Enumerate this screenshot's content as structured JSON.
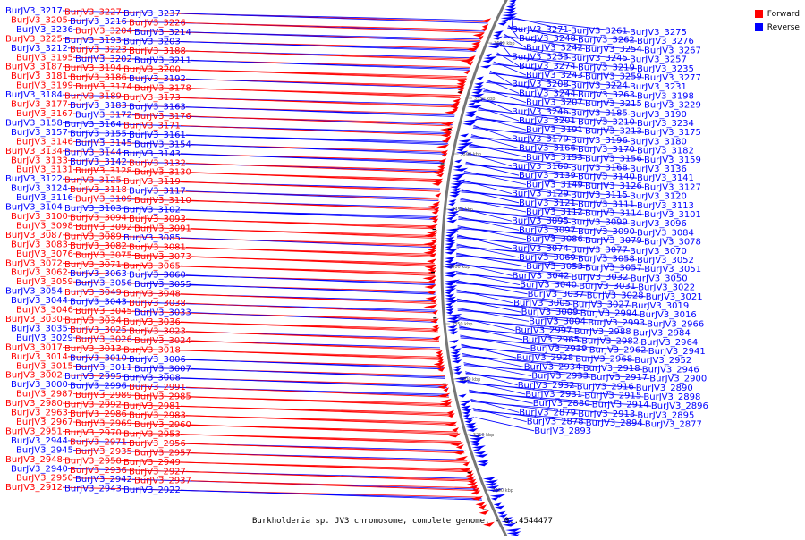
{
  "legend": {
    "forward_label": "Forward",
    "reverse_label": "Reverse",
    "forward_color": "#ff0000",
    "reverse_color": "#0000ff"
  },
  "caption": "Burkholderia sp. JV3 chromosome, complete genome. - 0..4544477",
  "axis_ticks": [
    "3600 kbp",
    "3550 kbp",
    "3500 kbp",
    "3450 kbp",
    "3400 kbp",
    "3350 kbp",
    "3300 kbp",
    "3250 kbp",
    "3200 kbp"
  ],
  "left_labels": [
    {
      "t": "BurJV3_3217",
      "s": "r"
    },
    {
      "t": "BurJV3_3227",
      "s": "f"
    },
    {
      "t": "BurJV3_3237",
      "s": "r"
    },
    {
      "t": "BurJV3_3205",
      "s": "f"
    },
    {
      "t": "BurJV3_3216",
      "s": "r"
    },
    {
      "t": "BurJV3_3226",
      "s": "f"
    },
    {
      "t": "BurJV3_3236",
      "s": "r"
    },
    {
      "t": "BurJV3_3204",
      "s": "f"
    },
    {
      "t": "BurJV3_3214",
      "s": "r"
    },
    {
      "t": "BurJV3_3225",
      "s": "f"
    },
    {
      "t": "BurJV3_3193",
      "s": "r"
    },
    {
      "t": "BurJV3_3203",
      "s": "r"
    },
    {
      "t": "BurJV3_3212",
      "s": "r"
    },
    {
      "t": "BurJV3_3223",
      "s": "f"
    },
    {
      "t": "BurJV3_3188",
      "s": "f"
    },
    {
      "t": "BurJV3_3195",
      "s": "f"
    },
    {
      "t": "BurJV3_3202",
      "s": "r"
    },
    {
      "t": "BurJV3_3211",
      "s": "r"
    },
    {
      "t": "BurJV3_3187",
      "s": "f"
    },
    {
      "t": "BurJV3_3194",
      "s": "f"
    },
    {
      "t": "BurJV3_3200",
      "s": "f"
    },
    {
      "t": "BurJV3_3181",
      "s": "f"
    },
    {
      "t": "BurJV3_3186",
      "s": "f"
    },
    {
      "t": "BurJV3_3192",
      "s": "r"
    },
    {
      "t": "BurJV3_3199",
      "s": "f"
    },
    {
      "t": "BurJV3_3174",
      "s": "f"
    },
    {
      "t": "BurJV3_3178",
      "s": "f"
    },
    {
      "t": "BurJV3_3184",
      "s": "r"
    },
    {
      "t": "BurJV3_3189",
      "s": "f"
    },
    {
      "t": "BurJV3_3173",
      "s": "f"
    },
    {
      "t": "BurJV3_3177",
      "s": "f"
    },
    {
      "t": "BurJV3_3183",
      "s": "r"
    },
    {
      "t": "BurJV3_3163",
      "s": "r"
    },
    {
      "t": "BurJV3_3167",
      "s": "f"
    },
    {
      "t": "BurJV3_3172",
      "s": "r"
    },
    {
      "t": "BurJV3_3176",
      "s": "f"
    },
    {
      "t": "BurJV3_3158",
      "s": "r"
    },
    {
      "t": "BurJV3_3164",
      "s": "r"
    },
    {
      "t": "BurJV3_3171",
      "s": "f"
    },
    {
      "t": "BurJV3_3157",
      "s": "r"
    },
    {
      "t": "BurJV3_3155",
      "s": "r"
    },
    {
      "t": "BurJV3_3161",
      "s": "r"
    },
    {
      "t": "BurJV3_3146",
      "s": "f"
    },
    {
      "t": "BurJV3_3145",
      "s": "r"
    },
    {
      "t": "BurJV3_3154",
      "s": "r"
    },
    {
      "t": "BurJV3_3134",
      "s": "f"
    },
    {
      "t": "BurJV3_3144",
      "s": "r"
    },
    {
      "t": "BurJV3_3143",
      "s": "r"
    },
    {
      "t": "BurJV3_3133",
      "s": "f"
    },
    {
      "t": "BurJV3_3142",
      "s": "r"
    },
    {
      "t": "BurJV3_3132",
      "s": "f"
    },
    {
      "t": "BurJV3_3131",
      "s": "f"
    },
    {
      "t": "BurJV3_3128",
      "s": "f"
    },
    {
      "t": "BurJV3_3130",
      "s": "f"
    },
    {
      "t": "BurJV3_3122",
      "s": "r"
    },
    {
      "t": "BurJV3_3125",
      "s": "f"
    },
    {
      "t": "BurJV3_3119",
      "s": "f"
    },
    {
      "t": "BurJV3_3124",
      "s": "r"
    },
    {
      "t": "BurJV3_3118",
      "s": "f"
    },
    {
      "t": "BurJV3_3117",
      "s": "r"
    },
    {
      "t": "BurJV3_3116",
      "s": "r"
    },
    {
      "t": "BurJV3_3109",
      "s": "f"
    },
    {
      "t": "BurJV3_3110",
      "s": "f"
    },
    {
      "t": "BurJV3_3104",
      "s": "r"
    },
    {
      "t": "BurJV3_3103",
      "s": "r"
    },
    {
      "t": "BurJV3_3102",
      "s": "r"
    },
    {
      "t": "BurJV3_3100",
      "s": "f"
    },
    {
      "t": "BurJV3_3094",
      "s": "f"
    },
    {
      "t": "BurJV3_3093",
      "s": "f"
    },
    {
      "t": "BurJV3_3098",
      "s": "f"
    },
    {
      "t": "BurJV3_3092",
      "s": "f"
    },
    {
      "t": "BurJV3_3091",
      "s": "f"
    },
    {
      "t": "BurJV3_3087",
      "s": "f"
    },
    {
      "t": "BurJV3_3089",
      "s": "f"
    },
    {
      "t": "BurJV3_3085",
      "s": "r"
    },
    {
      "t": "BurJV3_3083",
      "s": "f"
    },
    {
      "t": "BurJV3_3082",
      "s": "f"
    },
    {
      "t": "BurJV3_3081",
      "s": "f"
    },
    {
      "t": "BurJV3_3076",
      "s": "f"
    },
    {
      "t": "BurJV3_3075",
      "s": "f"
    },
    {
      "t": "BurJV3_3073",
      "s": "f"
    },
    {
      "t": "BurJV3_3072",
      "s": "f"
    },
    {
      "t": "BurJV3_3071",
      "s": "f"
    },
    {
      "t": "BurJV3_3065",
      "s": "f"
    },
    {
      "t": "BurJV3_3062",
      "s": "f"
    },
    {
      "t": "BurJV3_3063",
      "s": "r"
    },
    {
      "t": "BurJV3_3060",
      "s": "r"
    },
    {
      "t": "BurJV3_3059",
      "s": "f"
    },
    {
      "t": "BurJV3_3056",
      "s": "r"
    },
    {
      "t": "BurJV3_3055",
      "s": "r"
    },
    {
      "t": "BurJV3_3054",
      "s": "r"
    },
    {
      "t": "BurJV3_3049",
      "s": "f"
    },
    {
      "t": "BurJV3_3048",
      "s": "f"
    },
    {
      "t": "BurJV3_3044",
      "s": "r"
    },
    {
      "t": "BurJV3_3043",
      "s": "r"
    },
    {
      "t": "BurJV3_3038",
      "s": "f"
    },
    {
      "t": "BurJV3_3046",
      "s": "f"
    },
    {
      "t": "BurJV3_3045",
      "s": "f"
    },
    {
      "t": "BurJV3_3033",
      "s": "r"
    },
    {
      "t": "BurJV3_3030",
      "s": "f"
    },
    {
      "t": "BurJV3_3034",
      "s": "f"
    },
    {
      "t": "BurJV3_3036",
      "s": "f"
    },
    {
      "t": "BurJV3_3035",
      "s": "r"
    },
    {
      "t": "BurJV3_3025",
      "s": "f"
    },
    {
      "t": "BurJV3_3023",
      "s": "f"
    },
    {
      "t": "BurJV3_3029",
      "s": "r"
    },
    {
      "t": "BurJV3_3026",
      "s": "f"
    },
    {
      "t": "BurJV3_3024",
      "s": "f"
    },
    {
      "t": "BurJV3_3017",
      "s": "f"
    },
    {
      "t": "BurJV3_3013",
      "s": "f"
    },
    {
      "t": "BurJV3_3018",
      "s": "f"
    },
    {
      "t": "BurJV3_3014",
      "s": "f"
    },
    {
      "t": "BurJV3_3010",
      "s": "r"
    },
    {
      "t": "BurJV3_3006",
      "s": "r"
    },
    {
      "t": "BurJV3_3015",
      "s": "f"
    },
    {
      "t": "BurJV3_3011",
      "s": "r"
    },
    {
      "t": "BurJV3_3007",
      "s": "r"
    },
    {
      "t": "BurJV3_3002",
      "s": "f"
    },
    {
      "t": "BurJV3_2995",
      "s": "r"
    },
    {
      "t": "BurJV3_3008",
      "s": "r"
    },
    {
      "t": "BurJV3_3000",
      "s": "r"
    },
    {
      "t": "BurJV3_2996",
      "s": "r"
    },
    {
      "t": "BurJV3_2991",
      "s": "f"
    },
    {
      "t": "BurJV3_2987",
      "s": "f"
    },
    {
      "t": "BurJV3_2989",
      "s": "f"
    },
    {
      "t": "BurJV3_2985",
      "s": "f"
    },
    {
      "t": "BurJV3_2980",
      "s": "f"
    },
    {
      "t": "BurJV3_2992",
      "s": "f"
    },
    {
      "t": "BurJV3_2981",
      "s": "f"
    },
    {
      "t": "BurJV3_2963",
      "s": "f"
    },
    {
      "t": "BurJV3_2986",
      "s": "f"
    },
    {
      "t": "BurJV3_2983",
      "s": "f"
    },
    {
      "t": "BurJV3_2967",
      "s": "f"
    },
    {
      "t": "BurJV3_2969",
      "s": "f"
    },
    {
      "t": "BurJV3_2960",
      "s": "f"
    },
    {
      "t": "BurJV3_2951",
      "s": "f"
    },
    {
      "t": "BurJV3_2970",
      "s": "f"
    },
    {
      "t": "BurJV3_2953",
      "s": "f"
    },
    {
      "t": "BurJV3_2944",
      "s": "r"
    },
    {
      "t": "BurJV3_2971",
      "s": "f"
    },
    {
      "t": "BurJV3_2956",
      "s": "f"
    },
    {
      "t": "BurJV3_2945",
      "s": "r"
    },
    {
      "t": "BurJV3_2935",
      "s": "f"
    },
    {
      "t": "BurJV3_2957",
      "s": "f"
    },
    {
      "t": "BurJV3_2948",
      "s": "f"
    },
    {
      "t": "BurJV3_2958",
      "s": "f"
    },
    {
      "t": "BurJV3_2949",
      "s": "f"
    },
    {
      "t": "BurJV3_2940",
      "s": "r"
    },
    {
      "t": "BurJV3_2936",
      "s": "f"
    },
    {
      "t": "BurJV3_2927",
      "s": "f"
    },
    {
      "t": "BurJV3_2950",
      "s": "f"
    },
    {
      "t": "BurJV3_2942",
      "s": "r"
    },
    {
      "t": "BurJV3_2937",
      "s": "f"
    },
    {
      "t": "BurJV3_2912",
      "s": "f"
    },
    {
      "t": "BurJV3_2943",
      "s": "r"
    },
    {
      "t": "BurJV3_2922",
      "s": "r"
    }
  ],
  "right_labels": [
    "BurJV3_3271",
    "BurJV3_3261",
    "BurJV3_3275",
    "BurJV3_3248",
    "BurJV3_3262",
    "BurJV3_3276",
    "BurJV3_3242",
    "BurJV3_3254",
    "BurJV3_3267",
    "BurJV3_3233",
    "BurJV3_3245",
    "BurJV3_3257",
    "BurJV3_3274",
    "BurJV3_3219",
    "BurJV3_3235",
    "BurJV3_3243",
    "BurJV3_3259",
    "BurJV3_3277",
    "BurJV3_3208",
    "BurJV3_3224",
    "BurJV3_3231",
    "BurJV3_3244",
    "BurJV3_3263",
    "BurJV3_3198",
    "BurJV3_3207",
    "BurJV3_3215",
    "BurJV3_3229",
    "BurJV3_3246",
    "BurJV3_3185",
    "BurJV3_3190",
    "BurJV3_3201",
    "BurJV3_3210",
    "BurJV3_3234",
    "BurJV3_3191",
    "BurJV3_3213",
    "BurJV3_3175",
    "BurJV3_3179",
    "BurJV3_3196",
    "BurJV3_3180",
    "BurJV3_3166",
    "BurJV3_3170",
    "BurJV3_3182",
    "BurJV3_3153",
    "BurJV3_3156",
    "BurJV3_3159",
    "BurJV3_3160",
    "BurJV3_3168",
    "BurJV3_3136",
    "BurJV3_3139",
    "BurJV3_3140",
    "BurJV3_3141",
    "BurJV3_3149",
    "BurJV3_3126",
    "BurJV3_3127",
    "BurJV3_3129",
    "BurJV3_3115",
    "BurJV3_3120",
    "BurJV3_3121",
    "BurJV3_3111",
    "BurJV3_3113",
    "BurJV3_3112",
    "BurJV3_3114",
    "BurJV3_3101",
    "BurJV3_3095",
    "BurJV3_3099",
    "BurJV3_3096",
    "BurJV3_3097",
    "BurJV3_3090",
    "BurJV3_3084",
    "BurJV3_3086",
    "BurJV3_3079",
    "BurJV3_3078",
    "BurJV3_3074",
    "BurJV3_3077",
    "BurJV3_3070",
    "BurJV3_3069",
    "BurJV3_3058",
    "BurJV3_3052",
    "BurJV3_3053",
    "BurJV3_3057",
    "BurJV3_3051",
    "BurJV3_3042",
    "BurJV3_3032",
    "BurJV3_3050",
    "BurJV3_3040",
    "BurJV3_3031",
    "BurJV3_3022",
    "BurJV3_3037",
    "BurJV3_3028",
    "BurJV3_3021",
    "BurJV3_3005",
    "BurJV3_3027",
    "BurJV3_3019",
    "BurJV3_3009",
    "BurJV3_2994",
    "BurJV3_3016",
    "BurJV3_3004",
    "BurJV3_2993",
    "BurJV3_2966",
    "BurJV3_2997",
    "BurJV3_2988",
    "BurJV3_2984",
    "BurJV3_2965",
    "BurJV3_2982",
    "BurJV3_2964",
    "BurJV3_2939",
    "BurJV3_2962",
    "BurJV3_2941",
    "BurJV3_2928",
    "BurJV3_2968",
    "BurJV3_2952",
    "BurJV3_2934",
    "BurJV3_2918",
    "BurJV3_2946",
    "BurJV3_2933",
    "BurJV3_2917",
    "BurJV3_2900",
    "BurJV3_2932",
    "BurJV3_2916",
    "BurJV3_2890",
    "BurJV3_2931",
    "BurJV3_2915",
    "BurJV3_2898",
    "BurJV3_2880",
    "BurJV3_2914",
    "BurJV3_2896",
    "BurJV3_2879",
    "BurJV3_2913",
    "BurJV3_2895",
    "BurJV3_2878",
    "BurJV3_2894",
    "BurJV3_2877",
    "BurJV3_2893"
  ]
}
